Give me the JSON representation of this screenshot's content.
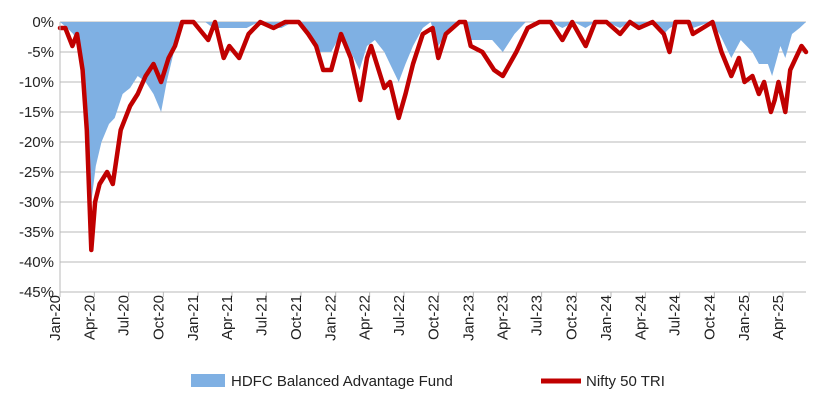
{
  "chart_data": {
    "type": "area",
    "title": "",
    "xlabel": "",
    "ylabel": "",
    "ylim": [
      -45,
      0
    ],
    "y_ticks": [
      "0%",
      "-5%",
      "-10%",
      "-15%",
      "-20%",
      "-25%",
      "-30%",
      "-35%",
      "-40%",
      "-45%"
    ],
    "y_tick_values": [
      0,
      -5,
      -10,
      -15,
      -20,
      -25,
      -30,
      -35,
      -40,
      -45
    ],
    "x_range": [
      "2020-01",
      "2025-06"
    ],
    "x_ticks": [
      "Jan-20",
      "Apr-20",
      "Jul-20",
      "Oct-20",
      "Jan-21",
      "Apr-21",
      "Jul-21",
      "Oct-21",
      "Jan-22",
      "Apr-22",
      "Jul-22",
      "Oct-22",
      "Jan-23",
      "Apr-23",
      "Jul-23",
      "Oct-23",
      "Jan-24",
      "Apr-24",
      "Jul-24",
      "Oct-24",
      "Jan-25",
      "Apr-25"
    ],
    "x_tick_dates": [
      "2020-01",
      "2020-04",
      "2020-07",
      "2020-10",
      "2021-01",
      "2021-04",
      "2021-07",
      "2021-10",
      "2022-01",
      "2022-04",
      "2022-07",
      "2022-10",
      "2023-01",
      "2023-04",
      "2023-07",
      "2023-10",
      "2024-01",
      "2024-04",
      "2024-07",
      "2024-10",
      "2025-01",
      "2025-04"
    ],
    "grid": "horizontal",
    "legend_position": "bottom",
    "series": [
      {
        "name": "HDFC Balanced Advantage Fund",
        "kind": "area",
        "color": "#7fb0e3",
        "points": [
          [
            "2020-01-01",
            0
          ],
          [
            "2020-01-20",
            -1
          ],
          [
            "2020-02-05",
            -2
          ],
          [
            "2020-02-20",
            -4
          ],
          [
            "2020-03-05",
            -10
          ],
          [
            "2020-03-15",
            -18
          ],
          [
            "2020-03-24",
            -30
          ],
          [
            "2020-04-05",
            -24
          ],
          [
            "2020-04-20",
            -20
          ],
          [
            "2020-05-10",
            -17
          ],
          [
            "2020-05-25",
            -16
          ],
          [
            "2020-06-15",
            -12
          ],
          [
            "2020-07-05",
            -11
          ],
          [
            "2020-07-25",
            -9
          ],
          [
            "2020-08-15",
            -10
          ],
          [
            "2020-09-05",
            -12
          ],
          [
            "2020-09-25",
            -15
          ],
          [
            "2020-10-10",
            -10
          ],
          [
            "2020-10-25",
            -6
          ],
          [
            "2020-11-10",
            -2
          ],
          [
            "2020-11-25",
            0
          ],
          [
            "2020-12-15",
            0
          ],
          [
            "2021-01-20",
            0
          ],
          [
            "2021-02-10",
            -1
          ],
          [
            "2021-03-10",
            -1
          ],
          [
            "2021-04-10",
            -1
          ],
          [
            "2021-05-10",
            -1
          ],
          [
            "2021-06-10",
            0
          ],
          [
            "2021-07-10",
            -1
          ],
          [
            "2021-08-10",
            -1
          ],
          [
            "2021-09-10",
            0
          ],
          [
            "2021-10-15",
            -1
          ],
          [
            "2021-11-01",
            -3
          ],
          [
            "2021-11-20",
            -5
          ],
          [
            "2021-12-20",
            -5
          ],
          [
            "2022-01-15",
            -2
          ],
          [
            "2022-02-10",
            -5
          ],
          [
            "2022-03-05",
            -8
          ],
          [
            "2022-03-25",
            -4
          ],
          [
            "2022-04-15",
            -3
          ],
          [
            "2022-05-10",
            -5
          ],
          [
            "2022-05-25",
            -7
          ],
          [
            "2022-06-17",
            -10
          ],
          [
            "2022-07-05",
            -7
          ],
          [
            "2022-07-25",
            -4
          ],
          [
            "2022-08-20",
            -1
          ],
          [
            "2022-09-10",
            0
          ],
          [
            "2022-09-30",
            -4
          ],
          [
            "2022-10-20",
            -2
          ],
          [
            "2022-11-20",
            0
          ],
          [
            "2022-12-10",
            0
          ],
          [
            "2022-12-25",
            -3
          ],
          [
            "2023-01-25",
            -3
          ],
          [
            "2023-02-20",
            -3
          ],
          [
            "2023-03-20",
            -5
          ],
          [
            "2023-04-20",
            -2
          ],
          [
            "2023-05-20",
            0
          ],
          [
            "2023-06-20",
            0
          ],
          [
            "2023-07-25",
            0
          ],
          [
            "2023-08-25",
            -1
          ],
          [
            "2023-09-25",
            0
          ],
          [
            "2023-10-25",
            -1
          ],
          [
            "2023-11-20",
            0
          ],
          [
            "2023-12-20",
            0
          ],
          [
            "2024-01-25",
            -1
          ],
          [
            "2024-02-20",
            0
          ],
          [
            "2024-03-15",
            -1
          ],
          [
            "2024-04-20",
            0
          ],
          [
            "2024-05-20",
            -2
          ],
          [
            "2024-06-05",
            -1
          ],
          [
            "2024-07-10",
            0
          ],
          [
            "2024-08-05",
            -1
          ],
          [
            "2024-09-20",
            0
          ],
          [
            "2024-10-15",
            -2
          ],
          [
            "2024-11-15",
            -6
          ],
          [
            "2024-12-10",
            -3
          ],
          [
            "2025-01-10",
            -5
          ],
          [
            "2025-01-27",
            -7
          ],
          [
            "2025-02-20",
            -7
          ],
          [
            "2025-03-03",
            -9
          ],
          [
            "2025-03-25",
            -4
          ],
          [
            "2025-04-07",
            -6
          ],
          [
            "2025-04-25",
            -2
          ],
          [
            "2025-05-15",
            -1
          ],
          [
            "2025-06-01",
            0
          ]
        ]
      },
      {
        "name": "Nifty 50 TRI",
        "kind": "line",
        "color": "#c00000",
        "points": [
          [
            "2020-01-01",
            -1
          ],
          [
            "2020-01-15",
            -1
          ],
          [
            "2020-02-03",
            -4
          ],
          [
            "2020-02-15",
            -2
          ],
          [
            "2020-03-01",
            -8
          ],
          [
            "2020-03-12",
            -18
          ],
          [
            "2020-03-24",
            -38
          ],
          [
            "2020-04-03",
            -30
          ],
          [
            "2020-04-15",
            -27
          ],
          [
            "2020-05-05",
            -25
          ],
          [
            "2020-05-20",
            -27
          ],
          [
            "2020-06-10",
            -18
          ],
          [
            "2020-07-05",
            -14
          ],
          [
            "2020-07-25",
            -12
          ],
          [
            "2020-08-15",
            -9
          ],
          [
            "2020-09-05",
            -7
          ],
          [
            "2020-09-25",
            -10
          ],
          [
            "2020-10-15",
            -6
          ],
          [
            "2020-11-01",
            -4
          ],
          [
            "2020-11-20",
            0
          ],
          [
            "2020-12-20",
            0
          ],
          [
            "2021-01-28",
            -3
          ],
          [
            "2021-02-15",
            0
          ],
          [
            "2021-03-10",
            -6
          ],
          [
            "2021-03-25",
            -4
          ],
          [
            "2021-04-20",
            -6
          ],
          [
            "2021-05-15",
            -2
          ],
          [
            "2021-06-15",
            0
          ],
          [
            "2021-07-20",
            -1
          ],
          [
            "2021-08-20",
            0
          ],
          [
            "2021-09-25",
            0
          ],
          [
            "2021-10-20",
            -2
          ],
          [
            "2021-11-10",
            -4
          ],
          [
            "2021-11-29",
            -8
          ],
          [
            "2021-12-20",
            -8
          ],
          [
            "2022-01-15",
            -2
          ],
          [
            "2022-02-10",
            -6
          ],
          [
            "2022-03-07",
            -13
          ],
          [
            "2022-03-25",
            -6
          ],
          [
            "2022-04-05",
            -4
          ],
          [
            "2022-05-10",
            -11
          ],
          [
            "2022-05-25",
            -10
          ],
          [
            "2022-06-17",
            -16
          ],
          [
            "2022-07-05",
            -12
          ],
          [
            "2022-07-25",
            -7
          ],
          [
            "2022-08-20",
            -2
          ],
          [
            "2022-09-15",
            -1
          ],
          [
            "2022-09-30",
            -6
          ],
          [
            "2022-10-20",
            -2
          ],
          [
            "2022-11-25",
            0
          ],
          [
            "2022-12-10",
            0
          ],
          [
            "2022-12-25",
            -4
          ],
          [
            "2023-01-25",
            -5
          ],
          [
            "2023-02-25",
            -8
          ],
          [
            "2023-03-20",
            -9
          ],
          [
            "2023-04-25",
            -5
          ],
          [
            "2023-05-25",
            -1
          ],
          [
            "2023-06-25",
            0
          ],
          [
            "2023-07-25",
            0
          ],
          [
            "2023-08-25",
            -3
          ],
          [
            "2023-09-20",
            0
          ],
          [
            "2023-10-26",
            -4
          ],
          [
            "2023-11-20",
            0
          ],
          [
            "2023-12-20",
            0
          ],
          [
            "2024-01-25",
            -2
          ],
          [
            "2024-02-20",
            0
          ],
          [
            "2024-03-15",
            -1
          ],
          [
            "2024-04-20",
            0
          ],
          [
            "2024-05-20",
            -2
          ],
          [
            "2024-06-04",
            -5
          ],
          [
            "2024-06-20",
            0
          ],
          [
            "2024-07-25",
            0
          ],
          [
            "2024-08-05",
            -2
          ],
          [
            "2024-09-26",
            0
          ],
          [
            "2024-10-20",
            -5
          ],
          [
            "2024-11-15",
            -9
          ],
          [
            "2024-12-05",
            -6
          ],
          [
            "2024-12-20",
            -10
          ],
          [
            "2025-01-10",
            -9
          ],
          [
            "2025-01-27",
            -12
          ],
          [
            "2025-02-10",
            -10
          ],
          [
            "2025-02-28",
            -15
          ],
          [
            "2025-03-10",
            -13
          ],
          [
            "2025-03-20",
            -10
          ],
          [
            "2025-04-07",
            -15
          ],
          [
            "2025-04-20",
            -8
          ],
          [
            "2025-05-05",
            -6
          ],
          [
            "2025-05-20",
            -4
          ],
          [
            "2025-06-01",
            -5
          ]
        ]
      }
    ]
  }
}
